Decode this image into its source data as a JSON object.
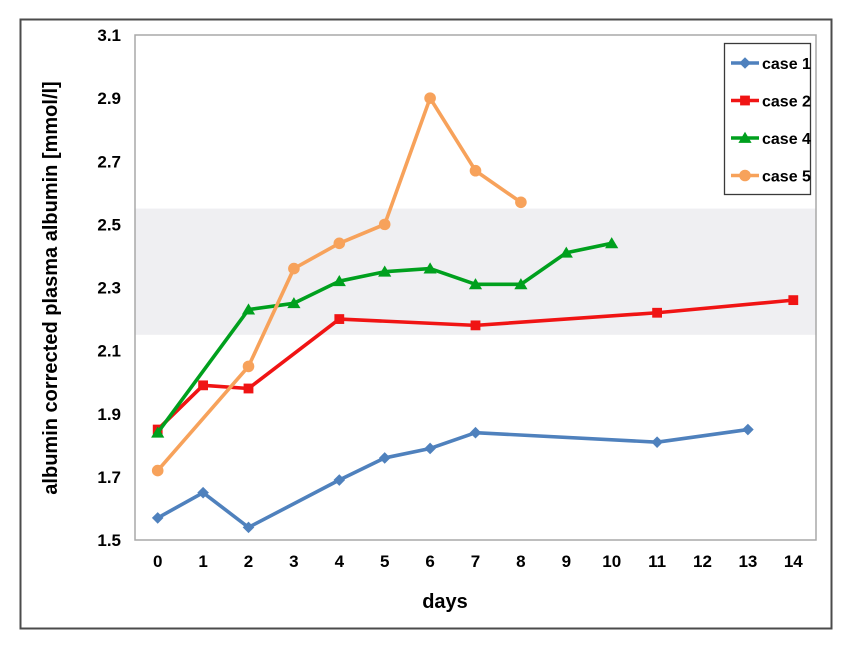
{
  "chart_data": {
    "type": "line",
    "title": "",
    "xlabel": "days",
    "ylabel": "albumin corrected plasma albumin [mmol/l]",
    "x_ticks": [
      0,
      1,
      2,
      3,
      4,
      5,
      6,
      7,
      8,
      9,
      10,
      11,
      12,
      13,
      14
    ],
    "y_ticks": [
      3.1,
      2.9,
      2.7,
      2.5,
      2.3,
      2.1,
      1.9,
      1.7,
      1.5
    ],
    "ylim": [
      1.5,
      3.1
    ],
    "grid": false,
    "reference_band": {
      "low": 2.15,
      "high": 2.55
    },
    "legend_position": "top-right",
    "series": [
      {
        "name": "case 1",
        "marker": "diamond",
        "color": "#4f81bd",
        "points": [
          [
            0,
            1.57
          ],
          [
            1,
            1.65
          ],
          [
            2,
            1.54
          ],
          [
            4,
            1.69
          ],
          [
            5,
            1.76
          ],
          [
            6,
            1.79
          ],
          [
            7,
            1.84
          ],
          [
            11,
            1.81
          ],
          [
            13,
            1.85
          ]
        ]
      },
      {
        "name": "case 2",
        "marker": "square",
        "color": "#f01414",
        "points": [
          [
            0,
            1.85
          ],
          [
            1,
            1.99
          ],
          [
            2,
            1.98
          ],
          [
            4,
            2.2
          ],
          [
            7,
            2.18
          ],
          [
            11,
            2.22
          ],
          [
            14,
            2.26
          ]
        ]
      },
      {
        "name": "case 4",
        "marker": "triangle",
        "color": "#00a01e",
        "points": [
          [
            0,
            1.84
          ],
          [
            2,
            2.23
          ],
          [
            3,
            2.25
          ],
          [
            4,
            2.32
          ],
          [
            5,
            2.35
          ],
          [
            6,
            2.36
          ],
          [
            7,
            2.31
          ],
          [
            8,
            2.31
          ],
          [
            9,
            2.41
          ],
          [
            10,
            2.44
          ]
        ]
      },
      {
        "name": "case 5",
        "marker": "circle",
        "color": "#f7a25b",
        "points": [
          [
            0,
            1.72
          ],
          [
            2,
            2.05
          ],
          [
            3,
            2.36
          ],
          [
            4,
            2.44
          ],
          [
            5,
            2.5
          ],
          [
            6,
            2.9
          ],
          [
            7,
            2.67
          ],
          [
            8,
            2.57
          ]
        ]
      }
    ]
  },
  "colors": {
    "reference_band": "#efeff2",
    "plot_border": "#a8a8a8",
    "figure_border": "#4b4b4b",
    "legend_border": "#3a3a3a",
    "text": "#000000",
    "background": "#ffffff"
  }
}
